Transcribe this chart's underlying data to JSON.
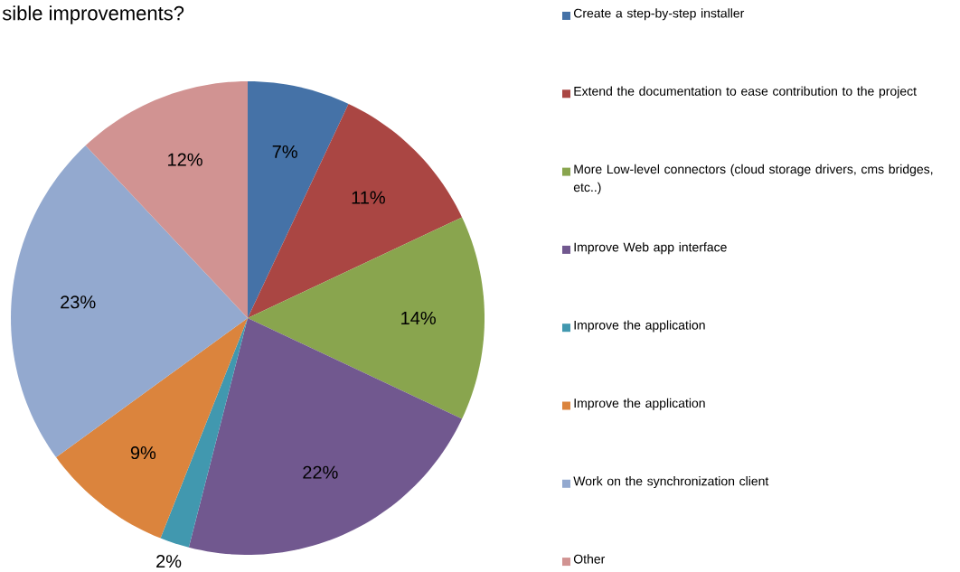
{
  "chart_data": {
    "type": "pie",
    "title": "sible improvements?",
    "categories": [
      "Create a step-by-step installer",
      "Extend the documentation to ease contribution to the project",
      "More Low-level connectors (cloud storage drivers, cms bridges, etc..)",
      "Improve Web app interface",
      "Improve the application",
      "Improve the application",
      "Work on the synchronization client",
      "Other"
    ],
    "values": [
      7,
      11,
      14,
      22,
      2,
      9,
      23,
      12
    ],
    "value_labels": [
      "7%",
      "11%",
      "14%",
      "22%",
      "2%",
      "9%",
      "23%",
      "12%"
    ],
    "colors": [
      "#4572a7",
      "#aa4643",
      "#89a54e",
      "#71588f",
      "#4198af",
      "#db843d",
      "#93a9cf",
      "#d19392"
    ],
    "legend": "right"
  }
}
